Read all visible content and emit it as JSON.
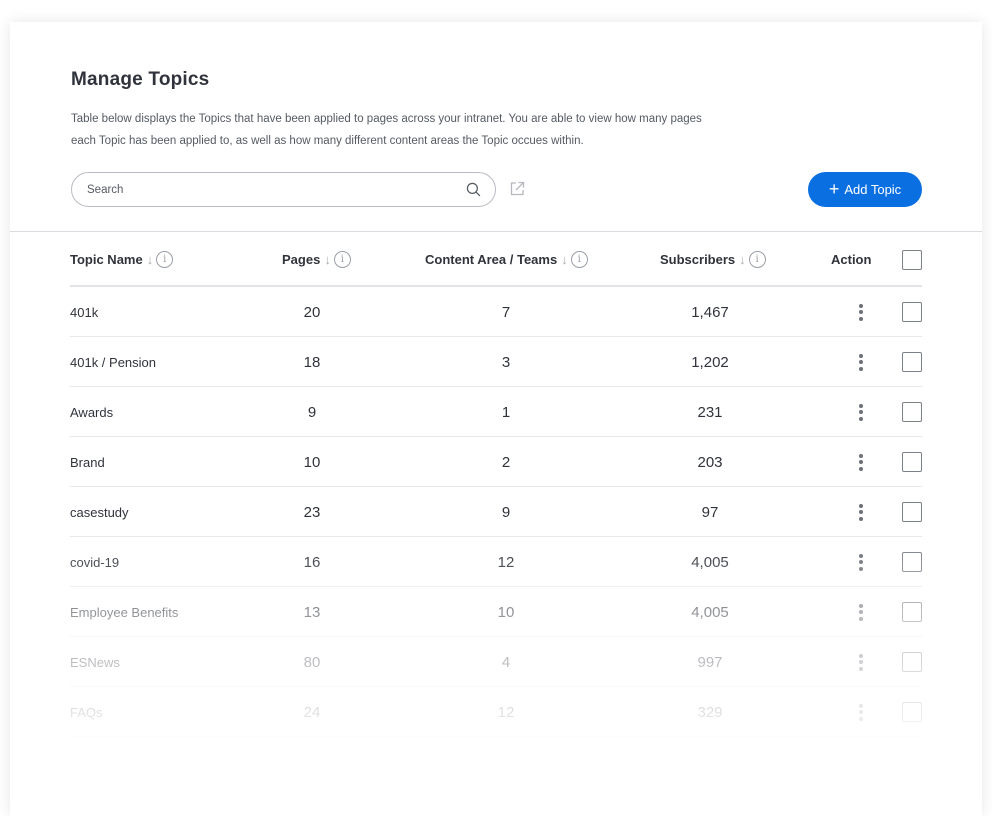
{
  "page": {
    "title": "Manage Topics",
    "description": "Table below displays the Topics that have been applied to pages across your intranet. You are able to view how many pages each Topic has been applied to, as well as how many different content areas the Topic occues within."
  },
  "search": {
    "placeholder": "Search"
  },
  "toolbar": {
    "add_label": "Add Topic"
  },
  "colors": {
    "accent": "#0a6fe0",
    "text": "#30333b",
    "border": "#e6e8eb"
  },
  "table": {
    "columns": {
      "name": "Topic Name",
      "pages": "Pages",
      "content": "Content Area / Teams",
      "subscribers": "Subscribers",
      "action": "Action"
    },
    "rows": [
      {
        "name": "401k",
        "pages": "20",
        "content": "7",
        "subscribers": "1,467"
      },
      {
        "name": "401k / Pension",
        "pages": "18",
        "content": "3",
        "subscribers": "1,202"
      },
      {
        "name": "Awards",
        "pages": "9",
        "content": "1",
        "subscribers": "231"
      },
      {
        "name": "Brand",
        "pages": "10",
        "content": "2",
        "subscribers": "203"
      },
      {
        "name": "casestudy",
        "pages": "23",
        "content": "9",
        "subscribers": "97"
      },
      {
        "name": "covid-19",
        "pages": "16",
        "content": "12",
        "subscribers": "4,005"
      },
      {
        "name": "Employee Benefits",
        "pages": "13",
        "content": "10",
        "subscribers": "4,005"
      },
      {
        "name": "ESNews",
        "pages": "80",
        "content": "4",
        "subscribers": "997"
      },
      {
        "name": "FAQs",
        "pages": "24",
        "content": "12",
        "subscribers": "329"
      }
    ]
  }
}
